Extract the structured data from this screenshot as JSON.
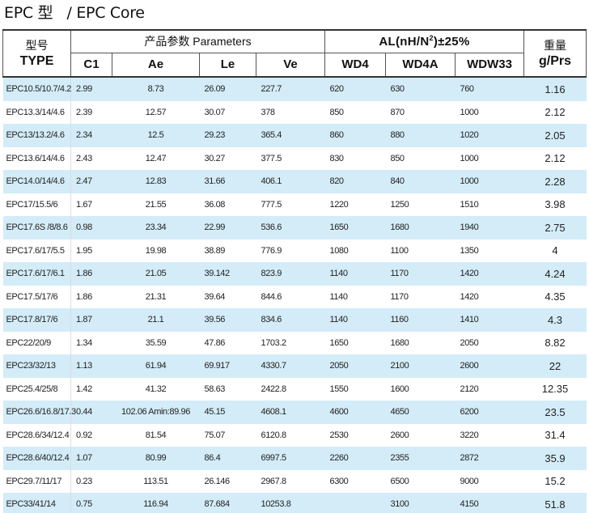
{
  "title": "EPC 型   / EPC Core",
  "colors": {
    "row_alt": "#d3ecf8",
    "row_plain": "#ffffff",
    "rule": "#333333"
  },
  "header": {
    "type_cn": "型号",
    "type_en": "TYPE",
    "params": "产品参数  Parameters",
    "al_prefix": "AL(nH/N",
    "al_sup": "2",
    "al_suffix": ")±25%",
    "weight_cn": "重量",
    "weight_en": "g/Prs",
    "cols": [
      "C1",
      "Ae",
      "Le",
      "Ve",
      "WD4",
      "WD4A",
      "WDW33"
    ]
  },
  "rows": [
    {
      "type": "EPC10.5/10.7/4.2",
      "c1": "2.99",
      "ae": "8.73",
      "le": "26.09",
      "ve": "227.7",
      "wd4": "620",
      "wd4a": "630",
      "wdw33": "760",
      "weight": "1.16"
    },
    {
      "type": "EPC13.3/14/4.6",
      "c1": "2.39",
      "ae": "12.57",
      "le": "30.07",
      "ve": "378",
      "wd4": "850",
      "wd4a": "870",
      "wdw33": "1000",
      "weight": "2.12"
    },
    {
      "type": "EPC13/13.2/4.6",
      "c1": "2.34",
      "ae": "12.5",
      "le": "29.23",
      "ve": "365.4",
      "wd4": "860",
      "wd4a": "880",
      "wdw33": "1020",
      "weight": "2.05"
    },
    {
      "type": "EPC13.6/14/4.6",
      "c1": "2.43",
      "ae": "12.47",
      "le": "30.27",
      "ve": "377.5",
      "wd4": "830",
      "wd4a": "850",
      "wdw33": "1000",
      "weight": "2.12"
    },
    {
      "type": "EPC14.0/14/4.6",
      "c1": "2.47",
      "ae": "12.83",
      "le": "31.66",
      "ve": "406.1",
      "wd4": "820",
      "wd4a": "840",
      "wdw33": "1000",
      "weight": "2.28"
    },
    {
      "type": "EPC17/15.5/6",
      "c1": "1.67",
      "ae": "21.55",
      "le": "36.08",
      "ve": "777.5",
      "wd4": "1220",
      "wd4a": "1250",
      "wdw33": "1510",
      "weight": "3.98"
    },
    {
      "type": "EPC17.6S /8/8.6",
      "c1": "0.98",
      "ae": "23.34",
      "le": "22.99",
      "ve": "536.6",
      "wd4": "1650",
      "wd4a": "1680",
      "wdw33": "1940",
      "weight": "2.75"
    },
    {
      "type": "EPC17.6/17/5.5",
      "c1": "1.95",
      "ae": "19.98",
      "le": "38.89",
      "ve": "776.9",
      "wd4": "1080",
      "wd4a": "1100",
      "wdw33": "1350",
      "weight": "4"
    },
    {
      "type": "EPC17.6/17/6.1",
      "c1": "1.86",
      "ae": "21.05",
      "le": "39.142",
      "ve": "823.9",
      "wd4": "1140",
      "wd4a": "1170",
      "wdw33": "1420",
      "weight": "4.24"
    },
    {
      "type": "EPC17.5/17/6",
      "c1": "1.86",
      "ae": "21.31",
      "le": "39.64",
      "ve": "844.6",
      "wd4": "1140",
      "wd4a": "1170",
      "wdw33": "1420",
      "weight": "4.35"
    },
    {
      "type": "EPC17.8/17/6",
      "c1": "1.87",
      "ae": "21.1",
      "le": "39.56",
      "ve": "834.6",
      "wd4": "1140",
      "wd4a": "1160",
      "wdw33": "1410",
      "weight": "4.3"
    },
    {
      "type": "EPC22/20/9",
      "c1": "1.34",
      "ae": "35.59",
      "le": "47.86",
      "ve": "1703.2",
      "wd4": "1650",
      "wd4a": "1680",
      "wdw33": "2050",
      "weight": "8.82"
    },
    {
      "type": "EPC23/32/13",
      "c1": "1.13",
      "ae": "61.94",
      "le": "69.917",
      "ve": "4330.7",
      "wd4": "2050",
      "wd4a": "2100",
      "wdw33": "2600",
      "weight": "22"
    },
    {
      "type": "EPC25.4/25/8",
      "c1": "1.42",
      "ae": "41.32",
      "le": "58.63",
      "ve": "2422.8",
      "wd4": "1550",
      "wd4a": "1600",
      "wdw33": "2120",
      "weight": "12.35"
    },
    {
      "type": "EPC26.6/16.8/17.3",
      "c1": "0.44",
      "ae": "102.06 Amin:89.96",
      "le": "45.15",
      "ve": "4608.1",
      "wd4": "4600",
      "wd4a": "4650",
      "wdw33": "6200",
      "weight": "23.5"
    },
    {
      "type": "EPC28.6/34/12.4",
      "c1": "0.92",
      "ae": "81.54",
      "le": "75.07",
      "ve": "6120.8",
      "wd4": "2530",
      "wd4a": "2600",
      "wdw33": "3220",
      "weight": "31.4"
    },
    {
      "type": "EPC28.6/40/12.4",
      "c1": "1.07",
      "ae": "80.99",
      "le": "86.4",
      "ve": "6997.5",
      "wd4": "2260",
      "wd4a": "2355",
      "wdw33": "2872",
      "weight": "35.9"
    },
    {
      "type": "EPC29.7/11/17",
      "c1": "0.23",
      "ae": "113.51",
      "le": "26.146",
      "ve": "2967.8",
      "wd4": "6300",
      "wd4a": "6500",
      "wdw33": "9000",
      "weight": "15.2"
    },
    {
      "type": "EPC33/41/14",
      "c1": "0.75",
      "ae": "116.94",
      "le": "87.684",
      "ve": "10253.8",
      "wd4": "",
      "wd4a": "3100",
      "wdw33": "4150",
      "weight": "51.8"
    }
  ]
}
